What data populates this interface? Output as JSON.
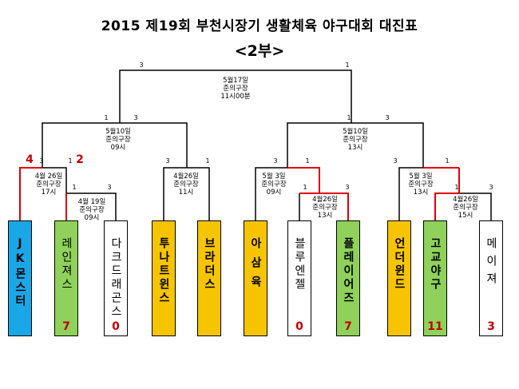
{
  "title": "2015 제19회 부천시장기 생활체육 야구대회 대진표",
  "subtitle": "<2부>",
  "matches": {
    "final": {
      "date": "5월17일",
      "venue": "준의구장",
      "time": "11시00분"
    },
    "semi_left": {
      "date": "5월10일",
      "venue": "준의구장",
      "time": "09시"
    },
    "semi_right": {
      "date": "5월10일",
      "venue": "준의구장",
      "time": "13시"
    },
    "q1": {
      "date": "4월 26일",
      "venue": "준의구장",
      "time": "17시"
    },
    "q2": {
      "date": "4월26일",
      "venue": "준의구장",
      "time": "11시"
    },
    "q3": {
      "date": "5월 3일",
      "venue": "준의구장",
      "time": "09시"
    },
    "q4": {
      "date": "5월 3일",
      "venue": "준의구장",
      "time": "13시"
    },
    "r1": {
      "date": "4월 19일",
      "venue": "준의구장",
      "time": "09시"
    },
    "r2": {
      "date": "4월26일",
      "venue": "준의구장",
      "time": "13시"
    },
    "r3": {
      "date": "4월26일",
      "venue": "준의구장",
      "time": "15시"
    }
  },
  "scores": {
    "final_l": "3",
    "final_r": "1",
    "sl_l": "1",
    "sl_r": "3",
    "sr_l": "1",
    "sr_r": "3",
    "q1_l": "4",
    "q1_r": "2",
    "q1_l_small": "3",
    "q1_r_small": "1",
    "q2_l": "3",
    "q2_r": "1",
    "q3_l": "3",
    "q3_r": "1",
    "q4_l": "3",
    "q4_r": "1",
    "r1_l": "1",
    "r1_r": "3",
    "r2_l": "1",
    "r2_r": "3",
    "r3_l": "1",
    "r3_r": "3"
  },
  "teams": [
    {
      "name": "JK몬스터",
      "color": "#1aa7e8",
      "score": ""
    },
    {
      "name": "레인져스",
      "color": "#8fd15a",
      "score": "7"
    },
    {
      "name": "다크드래곤스",
      "color": "#ffffff",
      "score": "0"
    },
    {
      "name": "투나트윈스",
      "color": "#f6c400",
      "score": ""
    },
    {
      "name": "브라더스",
      "color": "#f6c400",
      "score": ""
    },
    {
      "name": "아삼육",
      "color": "#f6c400",
      "score": ""
    },
    {
      "name": "블루엔젤",
      "color": "#ffffff",
      "score": "0"
    },
    {
      "name": "플레이어즈",
      "color": "#8fd15a",
      "score": "7"
    },
    {
      "name": "언더윈드",
      "color": "#f6c400",
      "score": ""
    },
    {
      "name": "고교야구",
      "color": "#8fd15a",
      "score": "11"
    },
    {
      "name": "메이져",
      "color": "#ffffff",
      "score": "3"
    }
  ]
}
